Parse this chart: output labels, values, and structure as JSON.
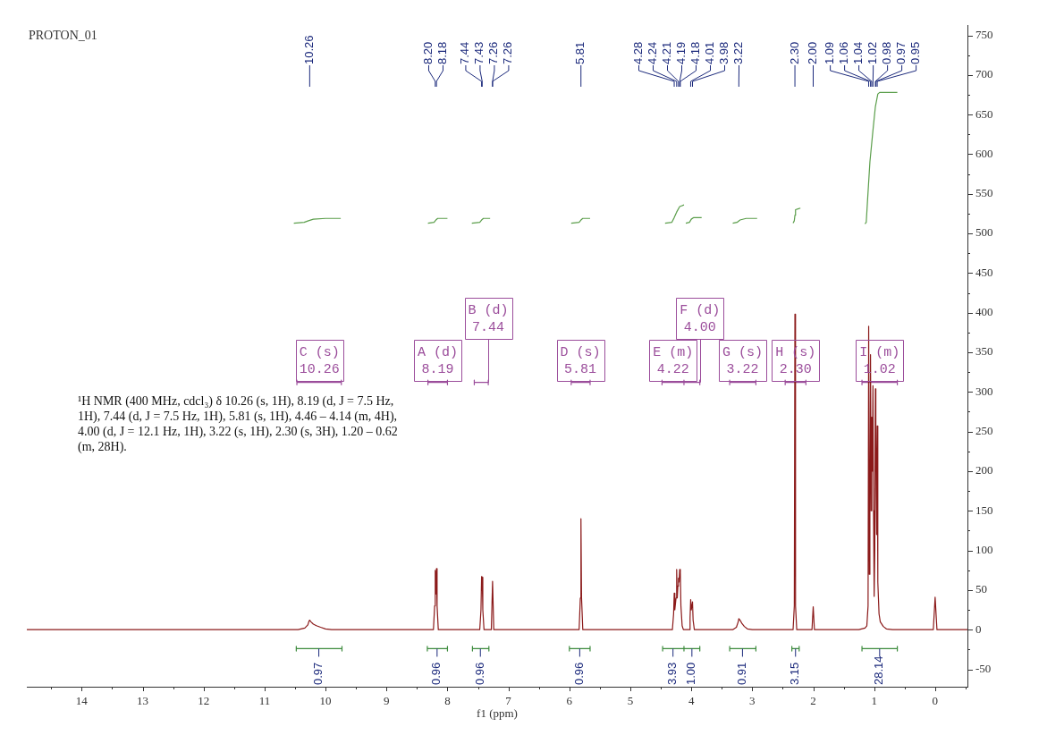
{
  "chart_data": {
    "type": "line",
    "title": "PROTON_01",
    "xlabel": "f1 (ppm)",
    "xlim": [
      14.9,
      -0.53
    ],
    "xticks": [
      {
        "value": -0.5,
        "label": null
      },
      0,
      {
        "value": 0.5,
        "label": null
      },
      1,
      {
        "value": 1.5,
        "label": null
      },
      2,
      {
        "value": 2.5,
        "label": null
      },
      3,
      {
        "value": 3.5,
        "label": null
      },
      4,
      {
        "value": 4.5,
        "label": null
      },
      5,
      {
        "value": 5.5,
        "label": null
      },
      6,
      {
        "value": 6.5,
        "label": null
      },
      7,
      {
        "value": 7.5,
        "label": null
      },
      8,
      {
        "value": 8.5,
        "label": null
      },
      9,
      {
        "value": 9.5,
        "label": null
      },
      10,
      {
        "value": 10.5,
        "label": null
      },
      11,
      {
        "value": 11.5,
        "label": null
      },
      12,
      {
        "value": 12.5,
        "label": null
      },
      13,
      {
        "value": 13.5,
        "label": null
      },
      14,
      {
        "value": 14.5,
        "label": null
      }
    ],
    "ylim": [
      -72,
      763
    ],
    "yticks": [
      -50,
      {
        "value": -25,
        "label": null
      },
      0,
      {
        "value": 25,
        "label": null
      },
      50,
      {
        "value": 75,
        "label": null
      },
      100,
      {
        "value": 125,
        "label": null
      },
      150,
      {
        "value": 175,
        "label": null
      },
      200,
      {
        "value": 225,
        "label": null
      },
      250,
      {
        "value": 275,
        "label": null
      },
      300,
      {
        "value": 325,
        "label": null
      },
      350,
      {
        "value": 375,
        "label": null
      },
      400,
      {
        "value": 425,
        "label": null
      },
      450,
      {
        "value": 475,
        "label": null
      },
      500,
      {
        "value": 525,
        "label": null
      },
      550,
      {
        "value": 575,
        "label": null
      },
      600,
      {
        "value": 625,
        "label": null
      },
      650,
      {
        "value": 675,
        "label": null
      },
      700,
      {
        "value": 725,
        "label": null
      },
      750
    ],
    "series": [
      {
        "color": "#8b1a1a",
        "x": [
          14.9,
          10.45,
          10.34,
          10.29,
          10.27,
          10.26,
          10.24,
          10.2,
          10.15,
          10.08,
          10.0,
          9.9,
          8.23,
          8.21,
          8.2,
          8.19,
          8.18,
          8.17,
          8.15,
          7.47,
          7.45,
          7.44,
          7.435,
          7.43,
          7.42,
          7.4,
          7.28,
          7.26,
          7.24,
          5.84,
          5.82,
          5.81,
          5.8,
          5.78,
          4.31,
          4.29,
          4.28,
          4.27,
          4.25,
          4.24,
          4.23,
          4.22,
          4.21,
          4.2,
          4.19,
          4.18,
          4.17,
          4.15,
          4.13,
          4.03,
          4.02,
          4.01,
          4.0,
          3.98,
          3.97,
          3.95,
          3.32,
          3.26,
          3.23,
          3.22,
          3.2,
          3.17,
          3.13,
          3.08,
          3.0,
          2.33,
          2.31,
          2.3,
          2.29,
          2.27,
          2.02,
          2.0,
          1.98,
          1.25,
          1.15,
          1.12,
          1.1,
          1.09,
          1.08,
          1.07,
          1.06,
          1.05,
          1.04,
          1.03,
          1.02,
          1.01,
          1.0,
          0.99,
          0.98,
          0.975,
          0.97,
          0.96,
          0.95,
          0.94,
          0.92,
          0.9,
          0.85,
          0.8,
          0.7,
          0.03,
          0.0,
          -0.03,
          -0.53
        ],
        "values": [
          0,
          0,
          2,
          6,
          11,
          12,
          10,
          7,
          5,
          3,
          1,
          0,
          0,
          30,
          75,
          45,
          77,
          30,
          0,
          0,
          25,
          67,
          50,
          66,
          25,
          0,
          0,
          61,
          0,
          0,
          40,
          140,
          40,
          0,
          0,
          20,
          46,
          25,
          40,
          76,
          40,
          55,
          65,
          60,
          76,
          72,
          30,
          5,
          0,
          0,
          15,
          38,
          25,
          35,
          12,
          0,
          0,
          3,
          10,
          14,
          12,
          8,
          4,
          1,
          0,
          0,
          30,
          398,
          30,
          0,
          0,
          29,
          0,
          0,
          2,
          5,
          30,
          383,
          70,
          150,
          347,
          150,
          268,
          200,
          308,
          150,
          42,
          100,
          304,
          200,
          257,
          120,
          257,
          60,
          20,
          10,
          4,
          1,
          0,
          0,
          41,
          0,
          0
        ]
      },
      {
        "color": "#5b9e4b",
        "x": [
          10.52,
          10.35,
          10.28,
          10.2,
          10.0,
          9.75,
          9.0,
          8.32,
          8.22,
          8.19,
          8.16,
          8.0,
          7.8,
          7.6,
          7.47,
          7.44,
          7.41,
          7.3,
          6.5,
          5.97,
          5.84,
          5.81,
          5.78,
          5.66,
          5.0,
          4.43,
          4.32,
          4.28,
          4.24,
          4.19,
          4.12,
          4.1,
          4.09,
          4.03,
          4.0,
          3.96,
          3.83,
          3.6,
          3.32,
          3.25,
          3.2,
          3.1,
          2.92,
          2.6,
          2.33,
          2.31,
          2.3,
          2.29,
          2.25,
          2.21,
          1.7,
          1.15,
          1.13,
          1.11,
          1.07,
          1.02,
          0.98,
          0.94,
          0.91,
          0.62
        ],
        "values": [
          513,
          514,
          516,
          518,
          519,
          519,
          null,
          513,
          514,
          517,
          519,
          519,
          null,
          513,
          514,
          517,
          519,
          519,
          null,
          513,
          514,
          517,
          519,
          519,
          null,
          513,
          514,
          520,
          527,
          534,
          536,
          null,
          513,
          514,
          518,
          520,
          520,
          null,
          513,
          514,
          517,
          519,
          519,
          null,
          513,
          516,
          523,
          530,
          531,
          532,
          null,
          512,
          514,
          540,
          590,
          630,
          660,
          676,
          678,
          678
        ]
      },
      {
        "color": "#3d8b3d",
        "x": [
          10.48,
          10.48,
          10.48,
          9.73,
          9.73,
          9.73,
          9.0,
          8.33,
          8.33,
          8.33,
          8.0,
          8.0,
          8.0,
          7.8,
          7.59,
          7.59,
          7.59,
          7.32,
          7.32,
          7.32,
          6.5,
          6.0,
          6.0,
          6.0,
          5.66,
          5.66,
          5.66,
          5.0,
          4.47,
          4.47,
          4.47,
          4.12,
          4.12,
          4.12,
          4.12,
          4.12,
          4.12,
          3.86,
          3.86,
          3.86,
          3.6,
          3.37,
          3.37,
          3.37,
          2.94,
          2.94,
          2.94,
          2.6,
          2.35,
          2.35,
          2.35,
          2.23,
          2.23,
          2.23,
          1.7,
          1.2,
          1.2,
          1.2,
          0.62,
          0.62,
          0.62
        ],
        "values": [
          -21,
          -27,
          -24,
          -24,
          -21,
          -27,
          null,
          -21,
          -27,
          -24,
          -24,
          -21,
          -27,
          null,
          -21,
          -27,
          -24,
          -24,
          -21,
          -27,
          null,
          -21,
          -27,
          -24,
          -24,
          -21,
          -27,
          null,
          -21,
          -27,
          -24,
          -24,
          -21,
          -27,
          -21,
          -27,
          -24,
          -24,
          -21,
          -27,
          null,
          -21,
          -27,
          -24,
          -24,
          -21,
          -27,
          null,
          -21,
          -27,
          -24,
          -24,
          -21,
          -27,
          null,
          -21,
          -27,
          -24,
          -24,
          -21,
          -27
        ]
      },
      {
        "color": "#9b4d9b",
        "x": [
          10.47,
          10.47,
          10.47,
          9.74,
          9.74,
          9.74,
          9.0,
          8.32,
          8.32,
          8.32,
          8.0,
          8.0,
          8.0,
          7.8,
          7.56,
          7.56,
          7.56,
          7.33,
          7.33,
          7.33,
          6.5,
          5.97,
          5.97,
          5.97,
          5.66,
          5.66,
          5.66,
          5.0,
          4.48,
          4.48,
          4.48,
          4.12,
          4.12,
          4.12,
          4.12,
          4.12,
          4.12,
          3.86,
          3.86,
          3.86,
          3.6,
          3.37,
          3.37,
          3.37,
          2.94,
          2.94,
          2.94,
          2.6,
          2.46,
          2.46,
          2.46,
          2.12,
          2.12,
          2.12,
          1.7,
          1.2,
          1.2,
          1.2,
          0.62,
          0.62,
          0.62
        ],
        "values": [
          315,
          309,
          312,
          312,
          315,
          309,
          null,
          315,
          309,
          312,
          312,
          315,
          309,
          null,
          315,
          309,
          312,
          312,
          315,
          309,
          null,
          315,
          309,
          312,
          312,
          315,
          309,
          null,
          315,
          309,
          312,
          312,
          315,
          309,
          315,
          309,
          312,
          312,
          315,
          309,
          null,
          315,
          309,
          312,
          312,
          315,
          309,
          null,
          315,
          309,
          312,
          312,
          315,
          309,
          null,
          315,
          309,
          312,
          312,
          315,
          309
        ]
      }
    ],
    "annotations": [
      {
        "text": "C (s)\n10.26",
        "x": 10.1,
        "y": 312
      },
      {
        "text": "A (d)\n8.19",
        "x": 8.16,
        "y": 312
      },
      {
        "text": "B (d)\n7.44",
        "x": 7.33,
        "y": 312
      },
      {
        "text": "D (s)\n5.81",
        "x": 5.82,
        "y": 312
      },
      {
        "text": "E (m)\n4.22",
        "x": 4.3,
        "y": 312
      },
      {
        "text": "F (d)\n4.00",
        "x": 3.86,
        "y": 312
      },
      {
        "text": "G (s)\n3.22",
        "x": 3.16,
        "y": 312
      },
      {
        "text": "H (s)\n2.30",
        "x": 2.29,
        "y": 312
      },
      {
        "text": "I (m)\n1.02",
        "x": 0.91,
        "y": 312
      },
      {
        "text": "0.97",
        "x": 10.11,
        "y": -24
      },
      {
        "text": "0.96",
        "x": 8.17,
        "y": -24
      },
      {
        "text": "0.96",
        "x": 7.46,
        "y": -24
      },
      {
        "text": "0.96",
        "x": 5.83,
        "y": -24
      },
      {
        "text": "3.93",
        "x": 4.3,
        "y": -24
      },
      {
        "text": "1.00",
        "x": 3.99,
        "y": -24
      },
      {
        "text": "0.91",
        "x": 3.16,
        "y": -24
      },
      {
        "text": "3.15",
        "x": 2.29,
        "y": -24
      },
      {
        "text": "28.14",
        "x": 0.91,
        "y": -24
      },
      {
        "text": "10.26",
        "x": 10.26
      },
      {
        "text": "8.20",
        "x": 8.2
      },
      {
        "text": "8.18",
        "x": 8.18
      },
      {
        "text": "7.44",
        "x": 7.44
      },
      {
        "text": "7.43",
        "x": 7.43
      },
      {
        "text": "7.26",
        "x": 7.26
      },
      {
        "text": "7.26",
        "x": 7.26
      },
      {
        "text": "5.81",
        "x": 5.81
      },
      {
        "text": "4.28",
        "x": 4.28
      },
      {
        "text": "4.24",
        "x": 4.24
      },
      {
        "text": "4.21",
        "x": 4.21
      },
      {
        "text": "4.19",
        "x": 4.19
      },
      {
        "text": "4.18",
        "x": 4.18
      },
      {
        "text": "4.01",
        "x": 4.01
      },
      {
        "text": "3.98",
        "x": 3.98
      },
      {
        "text": "3.22",
        "x": 3.22
      },
      {
        "text": "2.30",
        "x": 2.3
      },
      {
        "text": "2.00",
        "x": 2.0
      },
      {
        "text": "1.09",
        "x": 1.09
      },
      {
        "text": "1.06",
        "x": 1.06
      },
      {
        "text": "1.04",
        "x": 1.04
      },
      {
        "text": "1.02",
        "x": 1.02
      },
      {
        "text": "0.98",
        "x": 0.98
      },
      {
        "text": "0.97",
        "x": 0.97
      },
      {
        "text": "0.95",
        "x": 0.95
      },
      "¹H NMR (400 MHz, cdcl₃) δ 10.26 (s, 1H), 8.19 (d, J = 7.5 Hz, 1H), 7.44 (d, J = 7.5 Hz, 1H), 5.81 (s, 1H), 4.46 – 4.14 (m, 4H), 4.00 (d, J = 12.1 Hz, 1H), 3.22 (s, 1H), 2.30 (s, 3H), 1.20 – 0.62 (m, 28H)."
    ]
  }
}
